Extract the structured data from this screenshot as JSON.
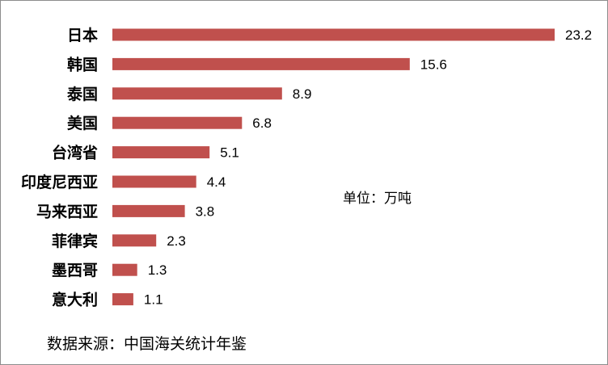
{
  "chart_data": {
    "type": "bar",
    "orientation": "horizontal",
    "categories": [
      "日本",
      "韩国",
      "泰国",
      "美国",
      "台湾省",
      "印度尼西亚",
      "马来西亚",
      "菲律宾",
      "墨西哥",
      "意大利"
    ],
    "values": [
      23.2,
      15.6,
      8.9,
      6.8,
      5.1,
      4.4,
      3.8,
      2.3,
      1.3,
      1.1
    ],
    "value_labels": [
      "23.2",
      "15.6",
      "8.9",
      "6.8",
      "5.1",
      "4.4",
      "3.8",
      "2.3",
      "1.3",
      "1.1"
    ],
    "bar_color": "#c0504d",
    "xlim": [
      0,
      23.2
    ],
    "grid": false,
    "legend": "none"
  },
  "unit_note": "单位：万吨",
  "source_note": "数据来源：中国海关统计年鉴"
}
